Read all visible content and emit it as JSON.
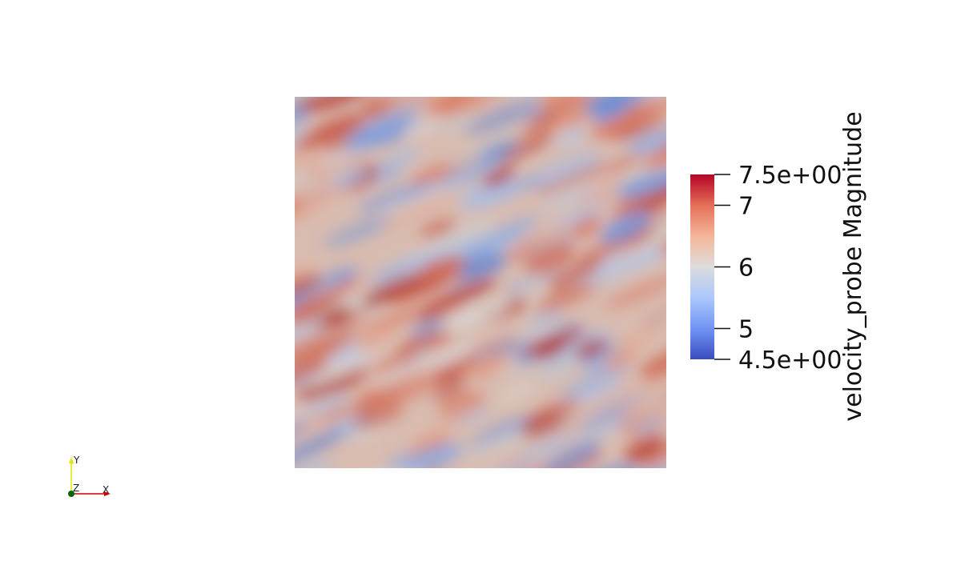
{
  "scalar_bar": {
    "title": "velocity_probe Magnitude",
    "range": [
      4.5,
      7.5
    ],
    "ticks": [
      {
        "value": 7.5,
        "label": "7.5e+00"
      },
      {
        "value": 7,
        "label": "7"
      },
      {
        "value": 6,
        "label": "6"
      },
      {
        "value": 5,
        "label": "5"
      },
      {
        "value": 4.5,
        "label": "4.5e+00"
      }
    ],
    "colormap": [
      "#3b4cc0",
      "#7b9ff9",
      "#c0d4f5",
      "#dddddd",
      "#f2cbb7",
      "#ee8468",
      "#b40426"
    ]
  },
  "axes": {
    "x_label": "X",
    "y_label": "Y",
    "z_label": "Z",
    "x_color": "#cc0000",
    "y_color": "#e6e600",
    "z_color": "#006600"
  }
}
